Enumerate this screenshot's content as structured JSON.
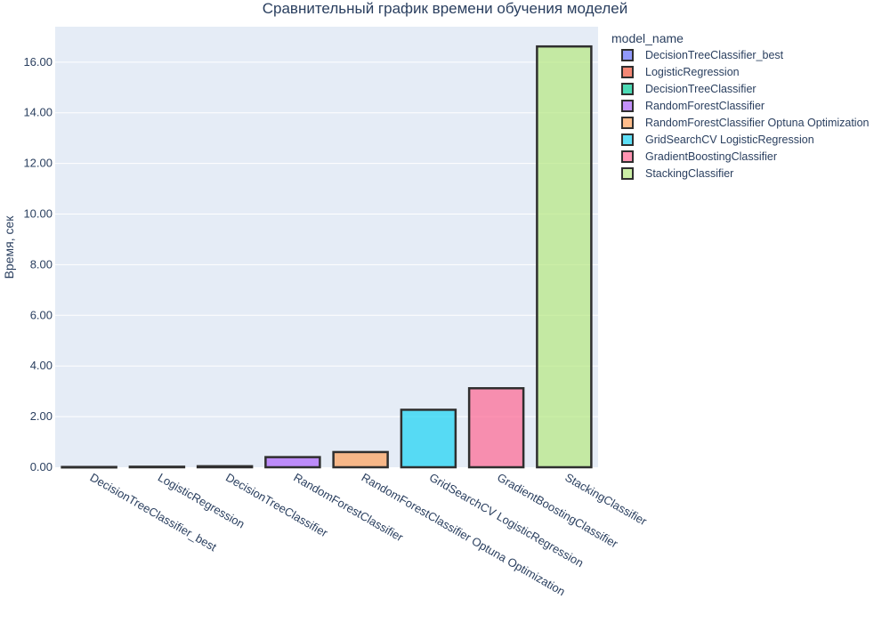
{
  "chart_data": {
    "type": "bar",
    "title": "Сравнительный график времени обучения моделей",
    "xlabel": "",
    "ylabel": "Время, сек",
    "ylim": [
      0,
      17.4
    ],
    "yticks": [
      "0.00",
      "2.00",
      "4.00",
      "6.00",
      "8.00",
      "10.00",
      "12.00",
      "14.00",
      "16.00"
    ],
    "grid": true,
    "legend": {
      "title": "model_name",
      "position": "right"
    },
    "categories": [
      "DecisionTreeClassifier_best",
      "LogisticRegression",
      "DecisionTreeClassifier",
      "RandomForestClassifier",
      "RandomForestClassifier Optuna Optimization",
      "GridSearchCV LogisticRegression",
      "GradientBoostingClassifier",
      "StackingClassifier"
    ],
    "series": [
      {
        "name": "DecisionTreeClassifier_best",
        "category": "DecisionTreeClassifier_best",
        "value": 0.01,
        "color": "#636efa"
      },
      {
        "name": "LogisticRegression",
        "category": "LogisticRegression",
        "value": 0.02,
        "color": "#EF553B"
      },
      {
        "name": "DecisionTreeClassifier",
        "category": "DecisionTreeClassifier",
        "value": 0.04,
        "color": "#00cc96"
      },
      {
        "name": "RandomForestClassifier",
        "category": "RandomForestClassifier",
        "value": 0.4,
        "color": "#ab63fa"
      },
      {
        "name": "RandomForestClassifier Optuna Optimization",
        "category": "RandomForestClassifier Optuna Optimization",
        "value": 0.6,
        "color": "#FFA15A"
      },
      {
        "name": "GridSearchCV LogisticRegression",
        "category": "GridSearchCV LogisticRegression",
        "value": 2.27,
        "color": "#19d3f3"
      },
      {
        "name": "GradientBoostingClassifier",
        "category": "GradientBoostingClassifier",
        "value": 3.12,
        "color": "#FF6692"
      },
      {
        "name": "StackingClassifier",
        "category": "StackingClassifier",
        "value": 16.62,
        "color": "#B6E880"
      }
    ],
    "colors": {
      "plot_bg": "#E5ECF6",
      "grid": "#ffffff",
      "bar_outline": "#2f2f2f",
      "text": "#2a3f5f"
    }
  }
}
